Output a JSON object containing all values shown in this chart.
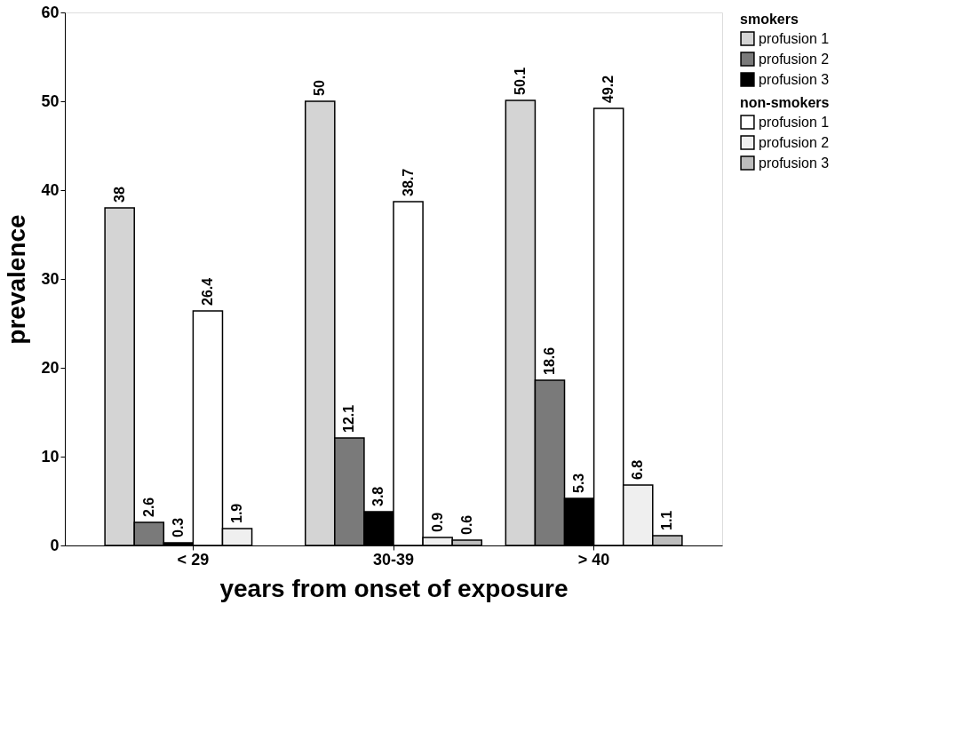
{
  "chart_data": {
    "type": "bar",
    "xlabel": "years from onset of exposure",
    "ylabel": "prevalence",
    "categories": [
      "< 29",
      "30-39",
      "> 40"
    ],
    "series": [
      {
        "name": "profusion 1",
        "color": "#d4d4d4",
        "values": [
          38,
          50,
          50.1
        ]
      },
      {
        "name": "profusion 2",
        "color": "#7a7a7a",
        "values": [
          2.6,
          12.1,
          18.6
        ]
      },
      {
        "name": "profusion 3",
        "color": "#000000",
        "values": [
          0.3,
          3.8,
          5.3
        ]
      },
      {
        "name": "profusion 1",
        "color": "#ffffff",
        "values": [
          26.4,
          38.7,
          49.2
        ]
      },
      {
        "name": "profusion 2",
        "color": "#efefef",
        "values": [
          1.9,
          0.9,
          6.8
        ]
      },
      {
        "name": "profusion 3",
        "color": "#bdbdbd",
        "values": [
          null,
          0.6,
          1.1
        ]
      }
    ],
    "annotations": [
      "smokers",
      "non-smokers"
    ],
    "ylim": [
      0,
      60
    ],
    "yticks": [
      0,
      10,
      20,
      30,
      40,
      50,
      60
    ],
    "grid": false,
    "legend": "right",
    "data_labels": true
  }
}
